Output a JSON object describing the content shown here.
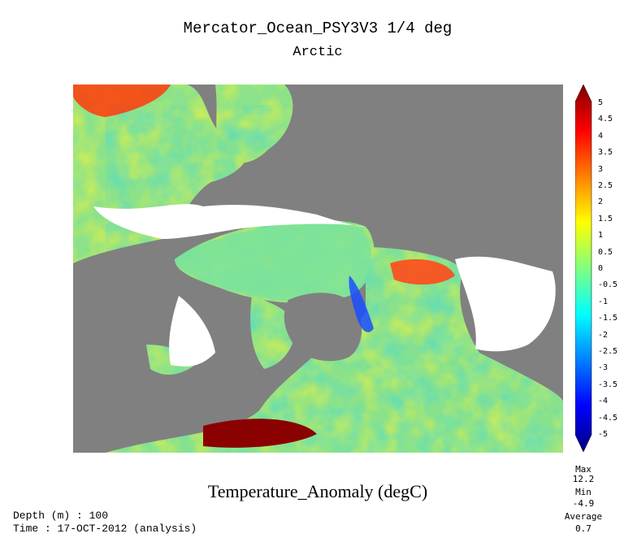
{
  "header": {
    "title": "Mercator_Ocean_PSY3V3 1/4 deg",
    "region": "Arctic"
  },
  "variable_label": "Temperature_Anomaly (degC)",
  "colorbar": {
    "ticks": [
      "5",
      "4.5",
      "4",
      "3.5",
      "3",
      "2.5",
      "2",
      "1.5",
      "1",
      "0.5",
      "0",
      "-0.5",
      "-1",
      "-1.5",
      "-2",
      "-2.5",
      "-3",
      "-3.5",
      "-4",
      "-4.5",
      "-5"
    ],
    "range": [
      -5,
      5
    ],
    "colors": [
      "#00007f",
      "#0000ff",
      "#0080ff",
      "#00ffff",
      "#80ff80",
      "#ffff00",
      "#ff8000",
      "#ff0000",
      "#7f0000"
    ]
  },
  "stats": {
    "max_label": "Max",
    "max": "12.2",
    "min_label": "Min",
    "min": "-4.9",
    "avg_label": "Average",
    "avg": "0.7"
  },
  "footer": {
    "depth": "Depth (m) : 100",
    "time": "Time : 17-OCT-2012 (analysis)"
  },
  "map_colors": {
    "land": "#808080",
    "ice_nodata": "#ffffff"
  }
}
